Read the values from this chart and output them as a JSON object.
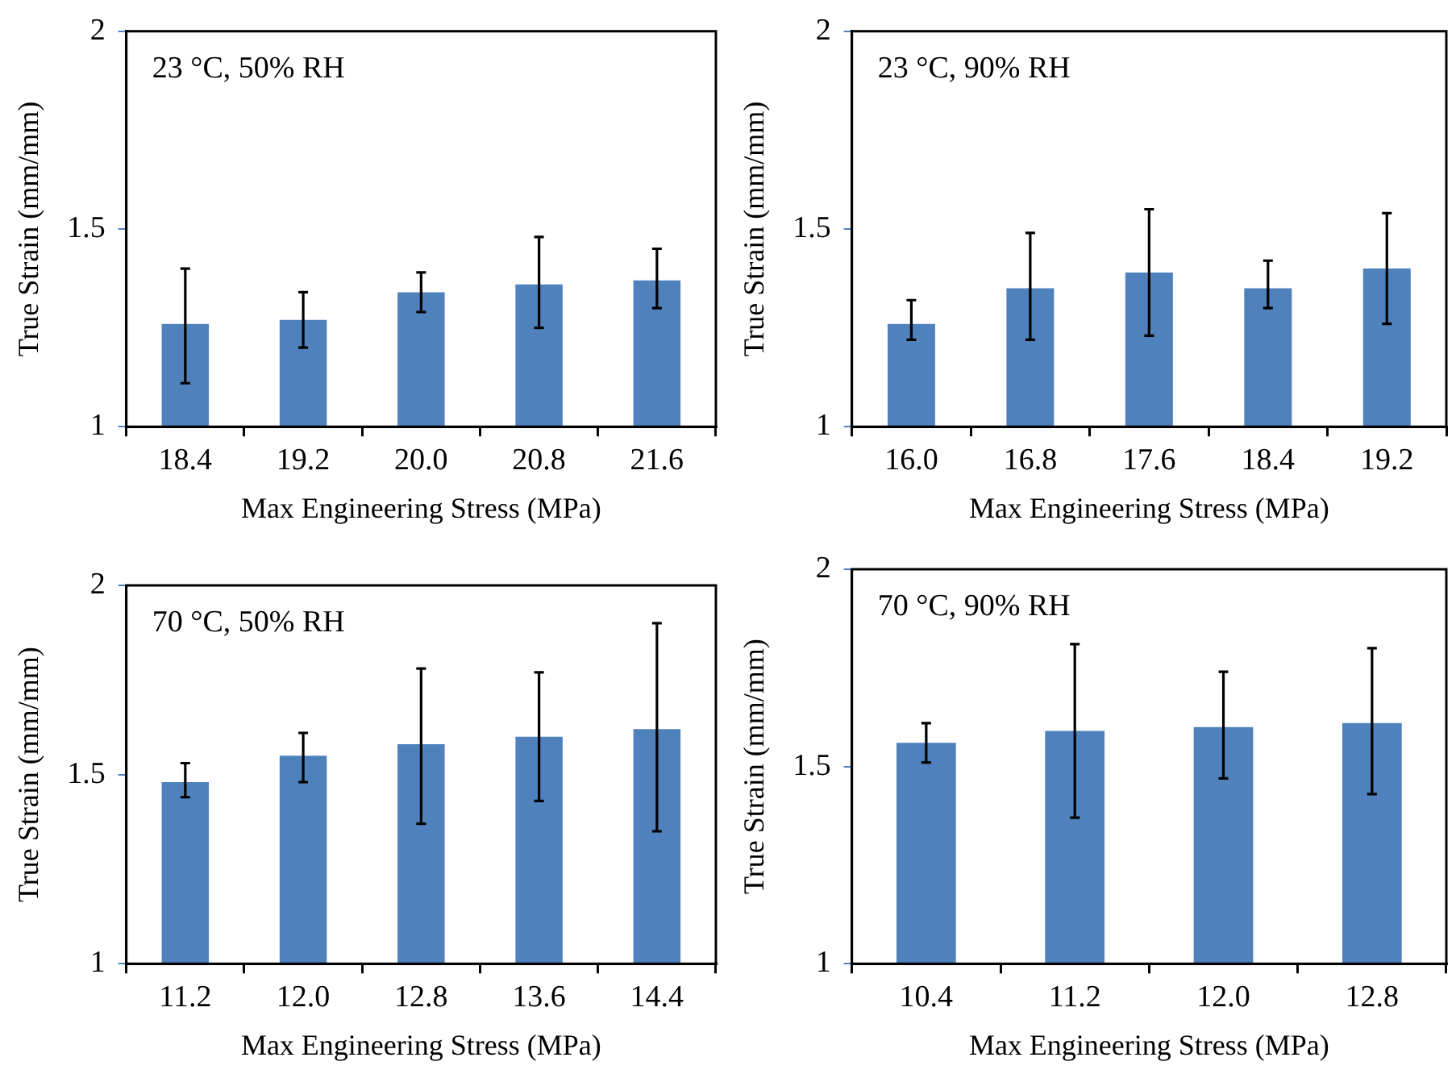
{
  "chart_data": [
    {
      "type": "bar",
      "title": "23 °C, 50% RH",
      "xlabel": "Max Engineering Stress (MPa)",
      "ylabel": "True Strain (mm/mm)",
      "categories": [
        "18.4",
        "19.2",
        "20.0",
        "20.8",
        "21.6"
      ],
      "values": [
        1.26,
        1.27,
        1.34,
        1.36,
        1.37
      ],
      "errors": [
        [
          1.11,
          1.4
        ],
        [
          1.2,
          1.34
        ],
        [
          1.29,
          1.39
        ],
        [
          1.25,
          1.48
        ],
        [
          1.3,
          1.45
        ]
      ],
      "color": "#4f81bd",
      "ylim": [
        1,
        2
      ],
      "yticks": [
        1,
        1.5,
        2
      ]
    },
    {
      "type": "bar",
      "title": "23 °C, 90% RH",
      "xlabel": "Max Engineering Stress (MPa)",
      "ylabel": "True Strain (mm/mm)",
      "categories": [
        "16.0",
        "16.8",
        "17.6",
        "18.4",
        "19.2"
      ],
      "values": [
        1.26,
        1.35,
        1.39,
        1.35,
        1.4
      ],
      "errors": [
        [
          1.22,
          1.32
        ],
        [
          1.22,
          1.49
        ],
        [
          1.23,
          1.55
        ],
        [
          1.3,
          1.42
        ],
        [
          1.26,
          1.54
        ]
      ],
      "color": "#4f81bd",
      "ylim": [
        1,
        2
      ],
      "yticks": [
        1,
        1.5,
        2
      ]
    },
    {
      "type": "bar",
      "title": "70 °C, 50% RH",
      "xlabel": "Max Engineering Stress (MPa)",
      "ylabel": "True Strain (mm/mm)",
      "categories": [
        "11.2",
        "12.0",
        "12.8",
        "13.6",
        "14.4"
      ],
      "values": [
        1.48,
        1.55,
        1.58,
        1.6,
        1.62
      ],
      "errors": [
        [
          1.44,
          1.53
        ],
        [
          1.48,
          1.61
        ],
        [
          1.37,
          1.78
        ],
        [
          1.43,
          1.77
        ],
        [
          1.35,
          1.9
        ]
      ],
      "color": "#4f81bd",
      "ylim": [
        1,
        2
      ],
      "yticks": [
        1,
        1.5,
        2
      ]
    },
    {
      "type": "bar",
      "title": "70 °C, 90% RH",
      "xlabel": "Max Engineering Stress (MPa)",
      "ylabel": "True Strain (mm/mm)",
      "categories": [
        "10.4",
        "11.2",
        "12.0",
        "12.8"
      ],
      "values": [
        1.56,
        1.59,
        1.6,
        1.61
      ],
      "errors": [
        [
          1.51,
          1.61
        ],
        [
          1.37,
          1.81
        ],
        [
          1.47,
          1.74
        ],
        [
          1.43,
          1.8
        ]
      ],
      "color": "#4f81bd",
      "ylim": [
        1,
        2
      ],
      "yticks": [
        1,
        1.5,
        2
      ]
    }
  ]
}
